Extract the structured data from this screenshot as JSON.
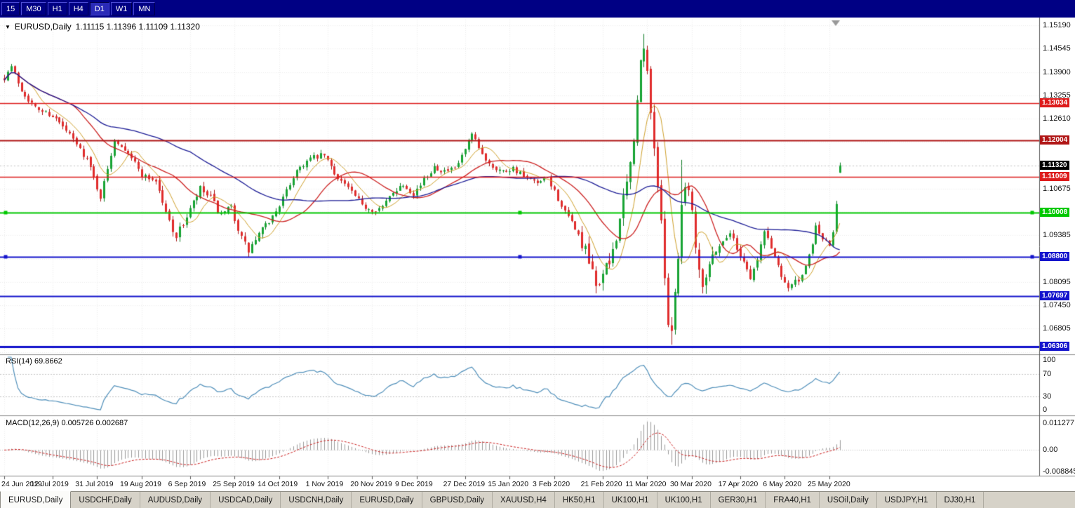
{
  "toolbar": {
    "buttons": [
      "15",
      "M30",
      "H1",
      "H4",
      "D1",
      "W1",
      "MN"
    ],
    "active": "D1"
  },
  "title": {
    "symbol": "EURUSD,Daily",
    "ohlc": "1.11115 1.11396 1.11109 1.11320",
    "open": "1.11115",
    "high": "1.11396",
    "low": "1.11109",
    "close": "1.11320"
  },
  "price_axis": {
    "visible_max": 1.15345,
    "visible_min": 1.06134,
    "grid_top": 1.1519,
    "grid_step": 0.00645,
    "ticks": [
      {
        "label": "1.15190",
        "value": 1.1519
      },
      {
        "label": "1.14545",
        "value": 1.14545
      },
      {
        "label": "1.13900",
        "value": 1.139
      },
      {
        "label": "1.13255",
        "value": 1.13255
      },
      {
        "label": "1.12610",
        "value": 1.1261
      },
      {
        "label": "1.10675",
        "value": 1.10675
      },
      {
        "label": "1.09385",
        "value": 1.09385
      },
      {
        "label": "1.08095",
        "value": 1.08095
      },
      {
        "label": "1.07450",
        "value": 1.0745
      },
      {
        "label": "1.06805",
        "value": 1.06805
      }
    ]
  },
  "current_price": {
    "label": "1.11320",
    "value": 1.1132,
    "label_bg": "#000000"
  },
  "horizontal_lines": [
    {
      "label": "1.13034",
      "value": 1.13034,
      "color": "#dd1c1c",
      "width": 1.5,
      "handles": false
    },
    {
      "label": "1.12004",
      "value": 1.12004,
      "color": "#b01616",
      "width": 2,
      "handles": false
    },
    {
      "label": "1.11009",
      "value": 1.11009,
      "color": "#dd1c1c",
      "width": 1.5,
      "handles": false
    },
    {
      "label": "1.10008",
      "value": 1.10008,
      "color": "#00c800",
      "width": 2,
      "handles": true
    },
    {
      "label": "1.08800",
      "value": 1.088,
      "color": "#1414cc",
      "width": 2,
      "handles": true
    },
    {
      "label": "1.07697",
      "value": 1.07697,
      "color": "#1414cc",
      "width": 2,
      "handles": false
    },
    {
      "label": "1.06306",
      "value": 1.06306,
      "color": "#1414cc",
      "width": 3,
      "handles": false
    }
  ],
  "date_axis": [
    {
      "label": "24 Jun 2019",
      "bar": 0
    },
    {
      "label": "12 Jul 2019",
      "bar": 14
    },
    {
      "label": "31 Jul 2019",
      "bar": 27
    },
    {
      "label": "19 Aug 2019",
      "bar": 40
    },
    {
      "label": "6 Sep 2019",
      "bar": 54
    },
    {
      "label": "25 Sep 2019",
      "bar": 67
    },
    {
      "label": "14 Oct 2019",
      "bar": 80
    },
    {
      "label": "1 Nov 2019",
      "bar": 94
    },
    {
      "label": "20 Nov 2019",
      "bar": 107
    },
    {
      "label": "9 Dec 2019",
      "bar": 120
    },
    {
      "label": "27 Dec 2019",
      "bar": 134
    },
    {
      "label": "15 Jan 2020",
      "bar": 147
    },
    {
      "label": "3 Feb 2020",
      "bar": 160
    },
    {
      "label": "21 Feb 2020",
      "bar": 174
    },
    {
      "label": "11 Mar 2020",
      "bar": 187
    },
    {
      "label": "30 Mar 2020",
      "bar": 200
    },
    {
      "label": "17 Apr 2020",
      "bar": 214
    },
    {
      "label": "6 May 2020",
      "bar": 227
    },
    {
      "label": "25 May 2020",
      "bar": 240
    }
  ],
  "rsi": {
    "label": "RSI(14) 69.8662",
    "current": 69.8662,
    "color": "#4f8fba",
    "levels": [
      70,
      30
    ],
    "axis": [
      {
        "label": "100",
        "value": 100
      },
      {
        "label": "70",
        "value": 70
      },
      {
        "label": "30",
        "value": 30
      },
      {
        "label": "0",
        "value": 0
      }
    ]
  },
  "macd": {
    "label": "MACD(12,26,9) 0.005726 0.002687",
    "macd_value": 0.005726,
    "signal_value": 0.002687,
    "max": 0.011277,
    "min": -0.008845,
    "hist_color": "#9a9a9a",
    "signal_color": "#cc2020",
    "axis": [
      {
        "label": "0.011277",
        "value": 0.011277
      },
      {
        "label": "0.00",
        "value": 0
      },
      {
        "label": "-0.008845",
        "value": -0.008845
      }
    ]
  },
  "chart_data": {
    "type": "candlestick",
    "symbol": "EURUSD",
    "period": "Daily",
    "count": 244,
    "up_color": "#18a434",
    "up_border": "#0e7c24",
    "down_color": "#e02c2c",
    "down_border": "#a81616",
    "seed": 7,
    "path_anchors": [
      [
        0,
        1.1375
      ],
      [
        2,
        1.1405
      ],
      [
        5,
        1.134
      ],
      [
        9,
        1.129
      ],
      [
        14,
        1.127
      ],
      [
        19,
        1.1215
      ],
      [
        24,
        1.115
      ],
      [
        28,
        1.1045
      ],
      [
        30,
        1.112
      ],
      [
        32,
        1.1205
      ],
      [
        36,
        1.117
      ],
      [
        40,
        1.1105
      ],
      [
        44,
        1.109
      ],
      [
        47,
        1.1
      ],
      [
        50,
        1.0935
      ],
      [
        53,
        1.099
      ],
      [
        57,
        1.1065
      ],
      [
        60,
        1.104
      ],
      [
        63,
        1.099
      ],
      [
        66,
        1.1015
      ],
      [
        69,
        1.093
      ],
      [
        71,
        1.0895
      ],
      [
        74,
        1.094
      ],
      [
        78,
        1.099
      ],
      [
        81,
        1.104
      ],
      [
        85,
        1.112
      ],
      [
        89,
        1.115
      ],
      [
        93,
        1.116
      ],
      [
        96,
        1.111
      ],
      [
        100,
        1.107
      ],
      [
        104,
        1.102
      ],
      [
        107,
        1.101
      ],
      [
        110,
        1.1015
      ],
      [
        113,
        1.106
      ],
      [
        116,
        1.108
      ],
      [
        119,
        1.1055
      ],
      [
        122,
        1.109
      ],
      [
        125,
        1.113
      ],
      [
        128,
        1.1115
      ],
      [
        131,
        1.112
      ],
      [
        134,
        1.1175
      ],
      [
        136,
        1.1215
      ],
      [
        139,
        1.116
      ],
      [
        142,
        1.113
      ],
      [
        145,
        1.1115
      ],
      [
        148,
        1.1125
      ],
      [
        151,
        1.11
      ],
      [
        155,
        1.108
      ],
      [
        158,
        1.1095
      ],
      [
        160,
        1.106
      ],
      [
        163,
        1.1
      ],
      [
        166,
        1.096
      ],
      [
        169,
        1.089
      ],
      [
        172,
        1.08
      ],
      [
        174,
        1.083
      ],
      [
        176,
        1.086
      ],
      [
        178,
        1.094
      ],
      [
        180,
        1.103
      ],
      [
        182,
        1.113
      ],
      [
        184,
        1.13
      ],
      [
        185,
        1.142
      ],
      [
        186,
        1.1445
      ],
      [
        187,
        1.139
      ],
      [
        188,
        1.129
      ],
      [
        189,
        1.118
      ],
      [
        190,
        1.108
      ],
      [
        191,
        1.096
      ],
      [
        192,
        1.084
      ],
      [
        193,
        1.07
      ],
      [
        194,
        1.068
      ],
      [
        195,
        1.078
      ],
      [
        196,
        1.089
      ],
      [
        197,
        1.102
      ],
      [
        198,
        1.109
      ],
      [
        199,
        1.106
      ],
      [
        200,
        1.101
      ],
      [
        201,
        1.092
      ],
      [
        202,
        1.085
      ],
      [
        203,
        1.081
      ],
      [
        205,
        1.086
      ],
      [
        207,
        1.09
      ],
      [
        209,
        1.092
      ],
      [
        211,
        1.095
      ],
      [
        213,
        1.09
      ],
      [
        215,
        1.087
      ],
      [
        217,
        1.082
      ],
      [
        219,
        1.087
      ],
      [
        221,
        1.095
      ],
      [
        222,
        1.093
      ],
      [
        224,
        1.088
      ],
      [
        226,
        1.083
      ],
      [
        228,
        1.0795
      ],
      [
        230,
        1.081
      ],
      [
        232,
        1.082
      ],
      [
        234,
        1.088
      ],
      [
        236,
        1.096
      ],
      [
        238,
        1.093
      ],
      [
        240,
        1.0905
      ],
      [
        241,
        1.095
      ],
      [
        242,
        1.103
      ],
      [
        243,
        1.1132
      ]
    ],
    "volatility": [
      {
        "from": 0,
        "to": 44,
        "v": 0.0016
      },
      {
        "from": 45,
        "to": 75,
        "v": 0.0022
      },
      {
        "from": 76,
        "to": 167,
        "v": 0.0016
      },
      {
        "from": 168,
        "to": 206,
        "v": 0.004
      },
      {
        "from": 207,
        "to": 243,
        "v": 0.0018
      }
    ],
    "forced": {
      "last": {
        "o": 1.11115,
        "h": 1.11396,
        "l": 1.11109,
        "c": 1.1132
      },
      "spikes": [
        {
          "bar": 2,
          "high": 1.1412
        },
        {
          "bar": 50,
          "low": 1.0926
        },
        {
          "bar": 71,
          "low": 1.0879
        },
        {
          "bar": 172,
          "low": 1.0778
        },
        {
          "bar": 186,
          "high": 1.1495
        },
        {
          "bar": 194,
          "low": 1.0636
        },
        {
          "bar": 197,
          "high": 1.1147
        }
      ]
    },
    "moving_averages": [
      {
        "period": 8,
        "color": "#cfa02a",
        "width": 1
      },
      {
        "period": 21,
        "color": "#cc2020",
        "width": 1.3
      },
      {
        "period": 55,
        "color": "#1c1c96",
        "width": 1.3
      }
    ]
  },
  "tabs": [
    {
      "label": "EURUSD,Daily",
      "active": true
    },
    {
      "label": "USDCHF,Daily",
      "active": false
    },
    {
      "label": "AUDUSD,Daily",
      "active": false
    },
    {
      "label": "USDCAD,Daily",
      "active": false
    },
    {
      "label": "USDCNH,Daily",
      "active": false
    },
    {
      "label": "EURUSD,Daily",
      "active": false
    },
    {
      "label": "GBPUSD,Daily",
      "active": false
    },
    {
      "label": "XAUUSD,H4",
      "active": false
    },
    {
      "label": "HK50,H1",
      "active": false
    },
    {
      "label": "UK100,H1",
      "active": false
    },
    {
      "label": "UK100,H1",
      "active": false
    },
    {
      "label": "GER30,H1",
      "active": false
    },
    {
      "label": "FRA40,H1",
      "active": false
    },
    {
      "label": "USOil,Daily",
      "active": false
    },
    {
      "label": "USDJPY,H1",
      "active": false
    },
    {
      "label": "DJ30,H1",
      "active": false
    }
  ]
}
